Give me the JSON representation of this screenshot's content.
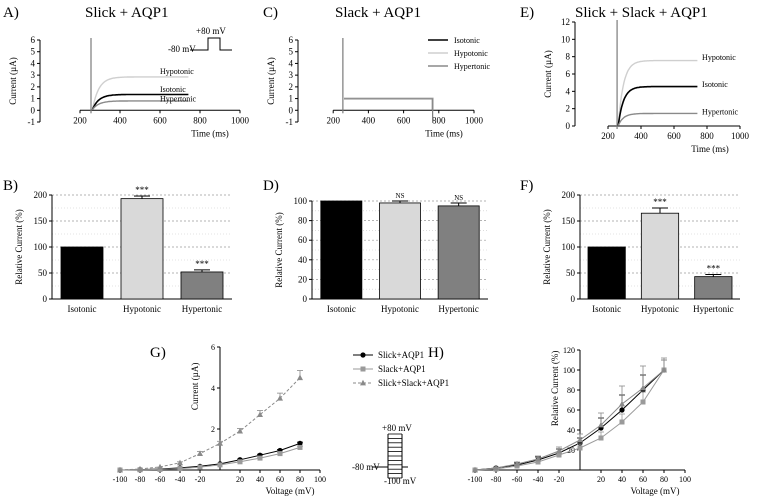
{
  "figure": {
    "panels": {
      "A": {
        "letter": "A)",
        "title": "Slick + AQP1"
      },
      "B": {
        "letter": "B)"
      },
      "C": {
        "letter": "C)",
        "title": "Slack + AQP1"
      },
      "D": {
        "letter": "D)"
      },
      "E": {
        "letter": "E)",
        "title": "Slick + Slack + AQP1"
      },
      "F": {
        "letter": "F)"
      },
      "G": {
        "letter": "G)"
      },
      "H": {
        "letter": "H)"
      }
    },
    "protocol_top": {
      "high": "+80 mV",
      "low": "-80 mV"
    },
    "protocol_bottom": {
      "high": "+80 mV",
      "hold": "-80 mV",
      "low": "-100 mV"
    }
  },
  "chart_data": [
    {
      "id": "A",
      "type": "line",
      "xlabel": "Time (ms)",
      "ylabel": "Current (µA)",
      "xlim": [
        0,
        1000
      ],
      "ylim": [
        -1,
        6
      ],
      "xticks": [
        200,
        400,
        600,
        800,
        1000
      ],
      "yticks": [
        -1,
        0,
        1,
        2,
        3,
        4,
        5,
        6
      ],
      "series": [
        {
          "name": "Hypotonic",
          "steady": 2.8,
          "color": "#cfcfcf"
        },
        {
          "name": "Isotonic",
          "steady": 1.3,
          "color": "#000000"
        },
        {
          "name": "Hypertonic",
          "steady": 0.75,
          "color": "#8a8a8a"
        }
      ]
    },
    {
      "id": "C",
      "type": "line",
      "xlabel": "Time (ms)",
      "ylabel": "Current (µA)",
      "xlim": [
        0,
        1000
      ],
      "ylim": [
        -1,
        6
      ],
      "xticks": [
        200,
        400,
        600,
        800,
        1000
      ],
      "yticks": [
        -1,
        0,
        1,
        2,
        3,
        4,
        5,
        6
      ],
      "legend": [
        "Isotonic",
        "Hypotonic",
        "Hypertonic"
      ],
      "series": [
        {
          "name": "Isotonic",
          "steady": 1.0,
          "color": "#000000"
        },
        {
          "name": "Hypotonic",
          "steady": 1.02,
          "color": "#cfcfcf"
        },
        {
          "name": "Hypertonic",
          "steady": 0.98,
          "color": "#8a8a8a"
        }
      ]
    },
    {
      "id": "E",
      "type": "line",
      "xlabel": "Time (ms)",
      "ylabel": "Current (µA)",
      "xlim": [
        0,
        1000
      ],
      "ylim": [
        0,
        12
      ],
      "xticks": [
        200,
        400,
        600,
        800,
        1000
      ],
      "yticks": [
        0,
        2,
        4,
        6,
        8,
        10,
        12
      ],
      "series": [
        {
          "name": "Hypotonic",
          "steady": 7.5,
          "color": "#cfcfcf"
        },
        {
          "name": "Isotonic",
          "steady": 4.5,
          "color": "#000000"
        },
        {
          "name": "Hypertonic",
          "steady": 1.4,
          "color": "#8a8a8a"
        }
      ]
    },
    {
      "id": "B",
      "type": "bar",
      "ylabel": "Relative Current (%)",
      "ylim": [
        0,
        200
      ],
      "yticks": [
        0,
        50,
        100,
        150,
        200
      ],
      "categories": [
        "Isotonic",
        "Hypotonic",
        "Hypertonic"
      ],
      "values": [
        100,
        193,
        52
      ],
      "errors": [
        0,
        5,
        4
      ],
      "annotations": [
        "",
        "***",
        "***"
      ],
      "colors": [
        "#000000",
        "#d9d9d9",
        "#808080"
      ]
    },
    {
      "id": "D",
      "type": "bar",
      "ylabel": "Relative Current (%)",
      "ylim": [
        0,
        100
      ],
      "yticks": [
        0,
        20,
        40,
        60,
        80,
        100
      ],
      "categories": [
        "Isotonic",
        "Hypotonic",
        "Hypertonic"
      ],
      "values": [
        100,
        98,
        95
      ],
      "errors": [
        0,
        2,
        3
      ],
      "annotations": [
        "",
        "NS",
        "NS"
      ],
      "colors": [
        "#000000",
        "#d9d9d9",
        "#808080"
      ]
    },
    {
      "id": "F",
      "type": "bar",
      "ylabel": "Relative Current (%)",
      "ylim": [
        0,
        200
      ],
      "yticks": [
        0,
        50,
        100,
        150,
        200
      ],
      "categories": [
        "Isotonic",
        "Hypotonic",
        "Hypertonic"
      ],
      "values": [
        100,
        165,
        43
      ],
      "errors": [
        0,
        10,
        4
      ],
      "annotations": [
        "",
        "***",
        "***"
      ],
      "colors": [
        "#000000",
        "#d9d9d9",
        "#808080"
      ]
    },
    {
      "id": "G",
      "type": "line",
      "xlabel": "Voltage (mV)",
      "ylabel": "Current (µA)",
      "xlim": [
        -100,
        100
      ],
      "ylim": [
        0,
        6
      ],
      "xticks": [
        -100,
        -80,
        -60,
        -40,
        -20,
        20,
        40,
        60,
        80,
        100
      ],
      "yticks": [
        2,
        4,
        6
      ],
      "x": [
        -100,
        -80,
        -60,
        -40,
        -20,
        0,
        20,
        40,
        60,
        80
      ],
      "series": [
        {
          "name": "Slick+AQP1",
          "marker": "circle",
          "dash": false,
          "color": "#000000",
          "values": [
            0.0,
            0.02,
            0.05,
            0.1,
            0.18,
            0.3,
            0.5,
            0.72,
            0.95,
            1.3
          ],
          "errors": [
            0,
            0,
            0,
            0,
            0,
            0,
            0.03,
            0.05,
            0.05,
            0.06
          ]
        },
        {
          "name": "Slack+AQP1",
          "marker": "square",
          "dash": false,
          "color": "#9a9a9a",
          "values": [
            0.0,
            0.01,
            0.03,
            0.07,
            0.14,
            0.25,
            0.4,
            0.58,
            0.8,
            1.1
          ],
          "errors": [
            0,
            0,
            0,
            0,
            0,
            0,
            0.03,
            0.04,
            0.05,
            0.06
          ]
        },
        {
          "name": "Slick+Slack+AQP1",
          "marker": "triangle",
          "dash": true,
          "color": "#8a8a8a",
          "values": [
            0.0,
            0.05,
            0.15,
            0.35,
            0.8,
            1.3,
            1.9,
            2.7,
            3.5,
            4.5
          ],
          "errors": [
            0,
            0,
            0,
            0.05,
            0.1,
            0.1,
            0.12,
            0.2,
            0.25,
            0.35
          ]
        }
      ]
    },
    {
      "id": "H",
      "type": "line",
      "xlabel": "Voltage (mV)",
      "ylabel": "Relative Current (%)",
      "xlim": [
        -100,
        100
      ],
      "ylim": [
        0,
        120
      ],
      "xticks": [
        -100,
        -80,
        -60,
        -40,
        -20,
        20,
        40,
        60,
        80,
        100
      ],
      "yticks": [
        20,
        40,
        60,
        80,
        100,
        120
      ],
      "x": [
        -100,
        -80,
        -60,
        -40,
        -20,
        0,
        20,
        40,
        60,
        80
      ],
      "series": [
        {
          "name": "Slick+AQP1",
          "marker": "circle",
          "color": "#000000",
          "values": [
            0,
            2,
            5,
            10,
            17,
            27,
            42,
            60,
            80,
            100
          ],
          "errors": [
            0,
            1,
            2,
            3,
            4,
            5,
            10,
            15,
            15,
            10
          ]
        },
        {
          "name": "Slack+AQP1",
          "marker": "square",
          "color": "#9a9a9a",
          "values": [
            0,
            1,
            4,
            8,
            15,
            22,
            32,
            48,
            68,
            100
          ],
          "errors": [
            0,
            1,
            1,
            2,
            3,
            4,
            6,
            8,
            10,
            10
          ]
        },
        {
          "name": "Slick+Slack+AQP1",
          "marker": "triangle",
          "color": "#8a8a8a",
          "values": [
            0,
            2,
            6,
            11,
            19,
            30,
            45,
            66,
            82,
            100
          ],
          "errors": [
            0,
            1,
            2,
            3,
            4,
            6,
            12,
            18,
            22,
            12
          ]
        }
      ]
    }
  ]
}
